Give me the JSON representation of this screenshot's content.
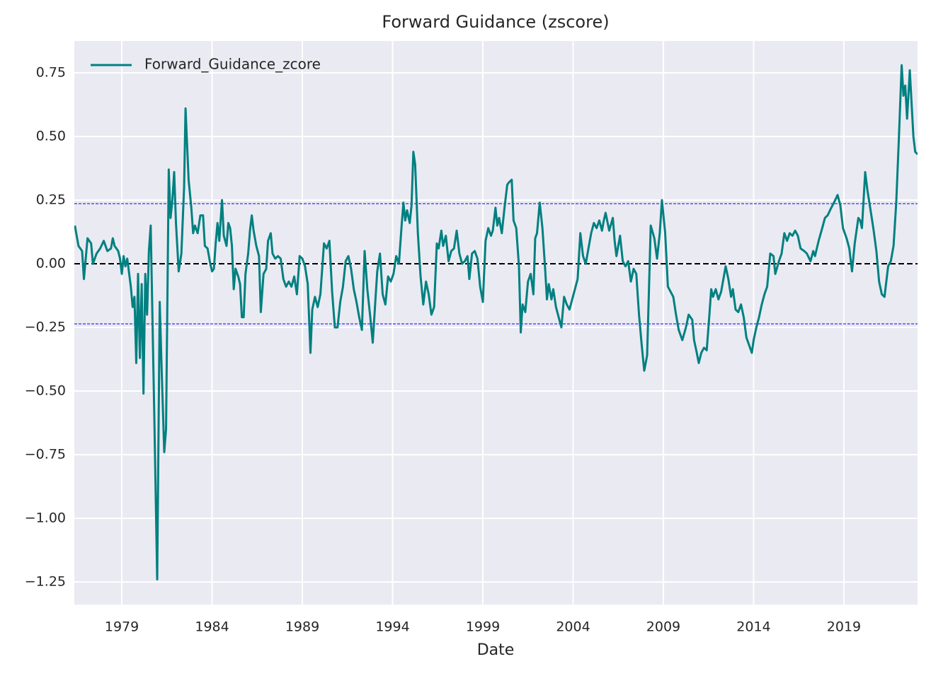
{
  "chart_data": {
    "type": "line",
    "title": "Forward Guidance (zscore)",
    "xlabel": "Date",
    "xlim": [
      1976.37,
      2023.08
    ],
    "ylim": [
      -1.339,
      0.875
    ],
    "xticks": [
      1979,
      1984,
      1989,
      1994,
      1999,
      2004,
      2009,
      2014,
      2019
    ],
    "yticks": [
      0.75,
      {
        "value": 0.5,
        "label": "0.50"
      },
      0.25,
      {
        "value": 0,
        "label": "0.00"
      },
      {
        "value": -0.25,
        "label": "−0.25"
      },
      {
        "value": -0.5,
        "label": "−0.50"
      },
      {
        "value": -0.75,
        "label": "−0.75"
      },
      {
        "value": -1,
        "label": "−1.00"
      },
      {
        "value": -1.25,
        "label": "−1.25"
      }
    ],
    "grid": true,
    "legend": "upper left",
    "hlines": [
      {
        "value": 0,
        "color": "#000000"
      },
      {
        "value": 0.236,
        "color": "#0000ff"
      },
      {
        "value": -0.236,
        "color": "#0000ff"
      }
    ],
    "series": [
      {
        "name": "Forward_Guidance_zcore",
        "color": "#008080",
        "x": [
          1976.4,
          1976.6,
          1976.8,
          1976.9,
          1977.1,
          1977.3,
          1977.4,
          1977.6,
          1977.8,
          1978.0,
          1978.2,
          1978.4,
          1978.5,
          1978.6,
          1978.8,
          1978.9,
          1979.0,
          1979.1,
          1979.2,
          1979.3,
          1979.5,
          1979.6,
          1979.7,
          1979.8,
          1979.9,
          1980.0,
          1980.1,
          1980.2,
          1980.3,
          1980.4,
          1980.5,
          1980.6,
          1980.8,
          1980.96,
          1981.1,
          1981.2,
          1981.35,
          1981.45,
          1981.6,
          1981.7,
          1981.8,
          1981.9,
          1982.0,
          1982.15,
          1982.3,
          1982.45,
          1982.53,
          1982.7,
          1982.85,
          1982.95,
          1983.05,
          1983.2,
          1983.35,
          1983.5,
          1983.6,
          1983.75,
          1983.9,
          1984.0,
          1984.1,
          1984.2,
          1984.3,
          1984.4,
          1984.55,
          1984.65,
          1984.8,
          1984.9,
          1985.0,
          1985.1,
          1985.2,
          1985.3,
          1985.45,
          1985.55,
          1985.65,
          1985.75,
          1985.85,
          1986.0,
          1986.1,
          1986.2,
          1986.3,
          1986.45,
          1986.6,
          1986.7,
          1986.85,
          1987.0,
          1987.1,
          1987.25,
          1987.35,
          1987.5,
          1987.65,
          1987.8,
          1987.95,
          1988.1,
          1988.25,
          1988.4,
          1988.55,
          1988.7,
          1988.85,
          1989.0,
          1989.15,
          1989.3,
          1989.45,
          1989.55,
          1989.7,
          1989.85,
          1990.0,
          1990.2,
          1990.35,
          1990.5,
          1990.65,
          1990.8,
          1990.95,
          1991.1,
          1991.25,
          1991.4,
          1991.55,
          1991.7,
          1991.85,
          1992.0,
          1992.15,
          1992.3,
          1992.45,
          1992.6,
          1992.75,
          1992.9,
          1993.05,
          1993.15,
          1993.3,
          1993.45,
          1993.6,
          1993.75,
          1993.9,
          1994.05,
          1994.2,
          1994.35,
          1994.5,
          1994.6,
          1994.7,
          1994.8,
          1994.95,
          1995.05,
          1995.15,
          1995.25,
          1995.4,
          1995.55,
          1995.7,
          1995.85,
          1996.0,
          1996.15,
          1996.3,
          1996.45,
          1996.55,
          1996.7,
          1996.8,
          1996.95,
          1997.1,
          1997.25,
          1997.4,
          1997.55,
          1997.7,
          1997.85,
          1998.0,
          1998.15,
          1998.25,
          1998.4,
          1998.55,
          1998.7,
          1998.85,
          1999.0,
          1999.15,
          1999.3,
          1999.45,
          1999.55,
          1999.7,
          1999.8,
          1999.9,
          2000.05,
          2000.2,
          2000.35,
          2000.45,
          2000.6,
          2000.7,
          2000.85,
          2001.0,
          2001.1,
          2001.2,
          2001.35,
          2001.5,
          2001.65,
          2001.8,
          2001.9,
          2002.0,
          2002.15,
          2002.3,
          2002.45,
          2002.55,
          2002.65,
          2002.8,
          2002.9,
          2003.05,
          2003.2,
          2003.35,
          2003.5,
          2003.65,
          2003.8,
          2004.25,
          2004.4,
          2004.55,
          2004.7,
          2004.85,
          2005.0,
          2005.15,
          2005.3,
          2005.45,
          2005.6,
          2005.7,
          2005.8,
          2006.0,
          2006.2,
          2006.3,
          2006.4,
          2006.6,
          2006.75,
          2006.9,
          2007.05,
          2007.2,
          2007.35,
          2007.5,
          2007.65,
          2007.8,
          2007.94,
          2008.1,
          2008.3,
          2008.5,
          2008.65,
          2008.8,
          2008.92,
          2009.1,
          2009.25,
          2009.4,
          2009.55,
          2009.7,
          2009.85,
          2010.05,
          2010.25,
          2010.4,
          2010.6,
          2010.7,
          2010.85,
          2010.96,
          2011.1,
          2011.25,
          2011.4,
          2011.55,
          2011.65,
          2011.75,
          2011.9,
          2012.05,
          2012.2,
          2012.35,
          2012.45,
          2012.6,
          2012.75,
          2012.85,
          2013.0,
          2013.15,
          2013.3,
          2013.45,
          2013.6,
          2013.75,
          2013.9,
          2014.0,
          2014.15,
          2014.3,
          2014.45,
          2014.6,
          2014.75,
          2014.92,
          2015.1,
          2015.2,
          2015.4,
          2015.55,
          2015.7,
          2015.85,
          2016.0,
          2016.15,
          2016.3,
          2016.45,
          2016.6,
          2016.8,
          2016.95,
          2017.15,
          2017.3,
          2017.4,
          2017.6,
          2017.8,
          2017.95,
          2018.1,
          2018.3,
          2018.45,
          2018.65,
          2018.8,
          2018.95,
          2019.15,
          2019.3,
          2019.45,
          2019.6,
          2019.8,
          2019.9,
          2020.0,
          2020.18,
          2020.3,
          2020.5,
          2020.65,
          2020.8,
          2020.95,
          2021.1,
          2021.25,
          2021.45,
          2021.6,
          2021.75,
          2021.9,
          2022.05,
          2022.2,
          2022.3,
          2022.4,
          2022.5,
          2022.65,
          2022.85,
          2022.95,
          2023.08
        ],
        "values": [
          0.15,
          0.07,
          0.05,
          -0.06,
          0.1,
          0.08,
          0.0,
          0.04,
          0.06,
          0.09,
          0.05,
          0.06,
          0.1,
          0.07,
          0.05,
          0.02,
          -0.04,
          0.03,
          -0.01,
          0.02,
          -0.09,
          -0.17,
          -0.13,
          -0.39,
          -0.04,
          -0.37,
          -0.08,
          -0.51,
          -0.04,
          -0.2,
          0.05,
          0.15,
          -0.6,
          -1.24,
          -0.15,
          -0.4,
          -0.74,
          -0.65,
          0.37,
          0.18,
          0.25,
          0.36,
          0.16,
          -0.03,
          0.04,
          0.3,
          0.61,
          0.33,
          0.22,
          0.12,
          0.15,
          0.12,
          0.19,
          0.19,
          0.07,
          0.06,
          0.0,
          -0.03,
          -0.02,
          0.08,
          0.16,
          0.09,
          0.25,
          0.11,
          0.07,
          0.16,
          0.14,
          0.07,
          -0.1,
          -0.02,
          -0.05,
          -0.08,
          -0.21,
          -0.21,
          -0.04,
          0.04,
          0.13,
          0.19,
          0.13,
          0.07,
          0.03,
          -0.19,
          -0.04,
          -0.02,
          0.09,
          0.12,
          0.04,
          0.02,
          0.03,
          0.02,
          -0.06,
          -0.09,
          -0.07,
          -0.09,
          -0.05,
          -0.12,
          0.03,
          0.02,
          -0.01,
          -0.08,
          -0.35,
          -0.18,
          -0.13,
          -0.17,
          -0.12,
          0.08,
          0.06,
          0.09,
          -0.11,
          -0.25,
          -0.25,
          -0.15,
          -0.09,
          0.01,
          0.03,
          -0.02,
          -0.1,
          -0.15,
          -0.21,
          -0.26,
          0.05,
          -0.1,
          -0.2,
          -0.31,
          -0.14,
          -0.03,
          0.04,
          -0.12,
          -0.16,
          -0.05,
          -0.07,
          -0.04,
          0.03,
          0.0,
          0.15,
          0.24,
          0.17,
          0.21,
          0.16,
          0.23,
          0.44,
          0.39,
          0.12,
          -0.05,
          -0.16,
          -0.07,
          -0.12,
          -0.2,
          -0.17,
          0.08,
          0.06,
          0.13,
          0.07,
          0.11,
          0.01,
          0.05,
          0.06,
          0.13,
          0.04,
          0.0,
          0.01,
          0.03,
          -0.06,
          0.04,
          0.05,
          0.02,
          -0.09,
          -0.15,
          0.09,
          0.14,
          0.11,
          0.13,
          0.22,
          0.15,
          0.18,
          0.12,
          0.22,
          0.31,
          0.32,
          0.33,
          0.17,
          0.14,
          -0.01,
          -0.27,
          -0.16,
          -0.19,
          -0.07,
          -0.04,
          -0.12,
          0.1,
          0.12,
          0.24,
          0.14,
          -0.02,
          -0.14,
          -0.08,
          -0.14,
          -0.1,
          -0.17,
          -0.21,
          -0.25,
          -0.13,
          -0.16,
          -0.18,
          -0.06,
          0.12,
          0.03,
          0.0,
          0.06,
          0.12,
          0.16,
          0.14,
          0.17,
          0.13,
          0.17,
          0.2,
          0.13,
          0.18,
          0.09,
          0.03,
          0.11,
          0.01,
          -0.01,
          0.01,
          -0.07,
          -0.02,
          -0.04,
          -0.2,
          -0.32,
          -0.42,
          -0.36,
          0.15,
          0.1,
          0.02,
          0.12,
          0.25,
          0.12,
          -0.09,
          -0.11,
          -0.13,
          -0.2,
          -0.26,
          -0.3,
          -0.25,
          -0.2,
          -0.22,
          -0.3,
          -0.35,
          -0.39,
          -0.35,
          -0.33,
          -0.34,
          -0.2,
          -0.1,
          -0.13,
          -0.1,
          -0.14,
          -0.11,
          -0.05,
          -0.01,
          -0.06,
          -0.13,
          -0.1,
          -0.18,
          -0.19,
          -0.16,
          -0.21,
          -0.29,
          -0.32,
          -0.35,
          -0.3,
          -0.25,
          -0.21,
          -0.16,
          -0.12,
          -0.09,
          0.04,
          0.03,
          -0.04,
          0.01,
          0.04,
          0.12,
          0.09,
          0.12,
          0.11,
          0.13,
          0.11,
          0.06,
          0.05,
          0.04,
          0.01,
          0.05,
          0.03,
          0.09,
          0.14,
          0.18,
          0.19,
          0.22,
          0.24,
          0.27,
          0.23,
          0.14,
          0.1,
          0.06,
          -0.03,
          0.08,
          0.18,
          0.17,
          0.14,
          0.36,
          0.29,
          0.2,
          0.13,
          0.05,
          -0.07,
          -0.12,
          -0.13,
          -0.01,
          0.01,
          0.07,
          0.24,
          0.5,
          0.78,
          0.66,
          0.7,
          0.57,
          0.76,
          0.5,
          0.44,
          0.43
        ]
      }
    ]
  }
}
